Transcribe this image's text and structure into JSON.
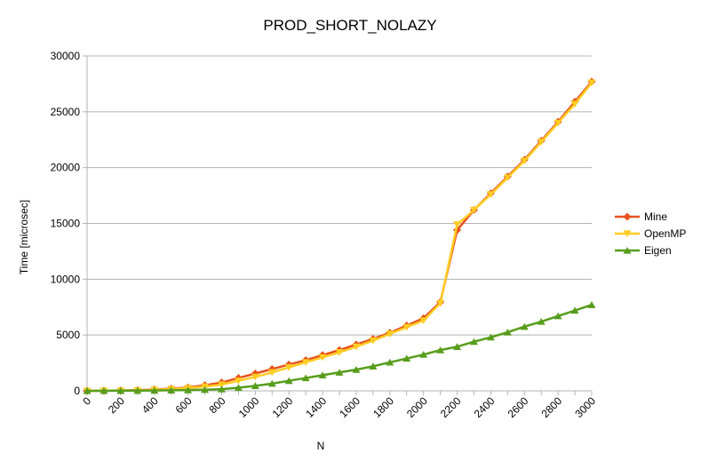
{
  "chart_data": {
    "type": "line",
    "title": "PROD_SHORT_NOLAZY",
    "xlabel": "N",
    "ylabel": "Time [microsec]",
    "xlim": [
      0,
      3000
    ],
    "ylim": [
      0,
      30000
    ],
    "x_ticks": [
      0,
      200,
      400,
      600,
      800,
      1000,
      1200,
      1400,
      1600,
      1800,
      2000,
      2200,
      2400,
      2600,
      2800,
      3000
    ],
    "y_ticks": [
      0,
      5000,
      10000,
      15000,
      20000,
      25000,
      30000
    ],
    "grid": "horizontal",
    "legend_position": "right",
    "x": [
      0,
      100,
      200,
      300,
      400,
      500,
      600,
      700,
      800,
      900,
      1000,
      1100,
      1200,
      1300,
      1400,
      1500,
      1600,
      1700,
      1800,
      1900,
      2000,
      2100,
      2200,
      2300,
      2400,
      2500,
      2600,
      2700,
      2800,
      2900,
      3000
    ],
    "series": [
      {
        "name": "Mine",
        "color": "#e8521c",
        "marker": "diamond",
        "values": [
          0,
          10,
          30,
          60,
          120,
          200,
          300,
          500,
          750,
          1150,
          1550,
          1950,
          2350,
          2750,
          3200,
          3650,
          4150,
          4650,
          5200,
          5850,
          6500,
          7950,
          14400,
          16200,
          17700,
          19200,
          20700,
          22400,
          24100,
          25900,
          27700
        ]
      },
      {
        "name": "OpenMP",
        "color": "#ffcc22",
        "marker": "triangle-down",
        "values": [
          0,
          10,
          20,
          40,
          90,
          160,
          250,
          380,
          560,
          900,
          1250,
          1650,
          2100,
          2550,
          3000,
          3450,
          3950,
          4500,
          5100,
          5700,
          6300,
          7850,
          14900,
          16200,
          17600,
          19100,
          20600,
          22300,
          24000,
          25700,
          27600
        ]
      },
      {
        "name": "Eigen",
        "color": "#579d1c",
        "marker": "triangle-up",
        "values": [
          0,
          5,
          10,
          20,
          30,
          50,
          70,
          100,
          150,
          280,
          450,
          650,
          900,
          1150,
          1400,
          1650,
          1900,
          2200,
          2550,
          2900,
          3250,
          3650,
          3950,
          4400,
          4800,
          5250,
          5750,
          6200,
          6700,
          7200,
          7700
        ]
      }
    ]
  }
}
